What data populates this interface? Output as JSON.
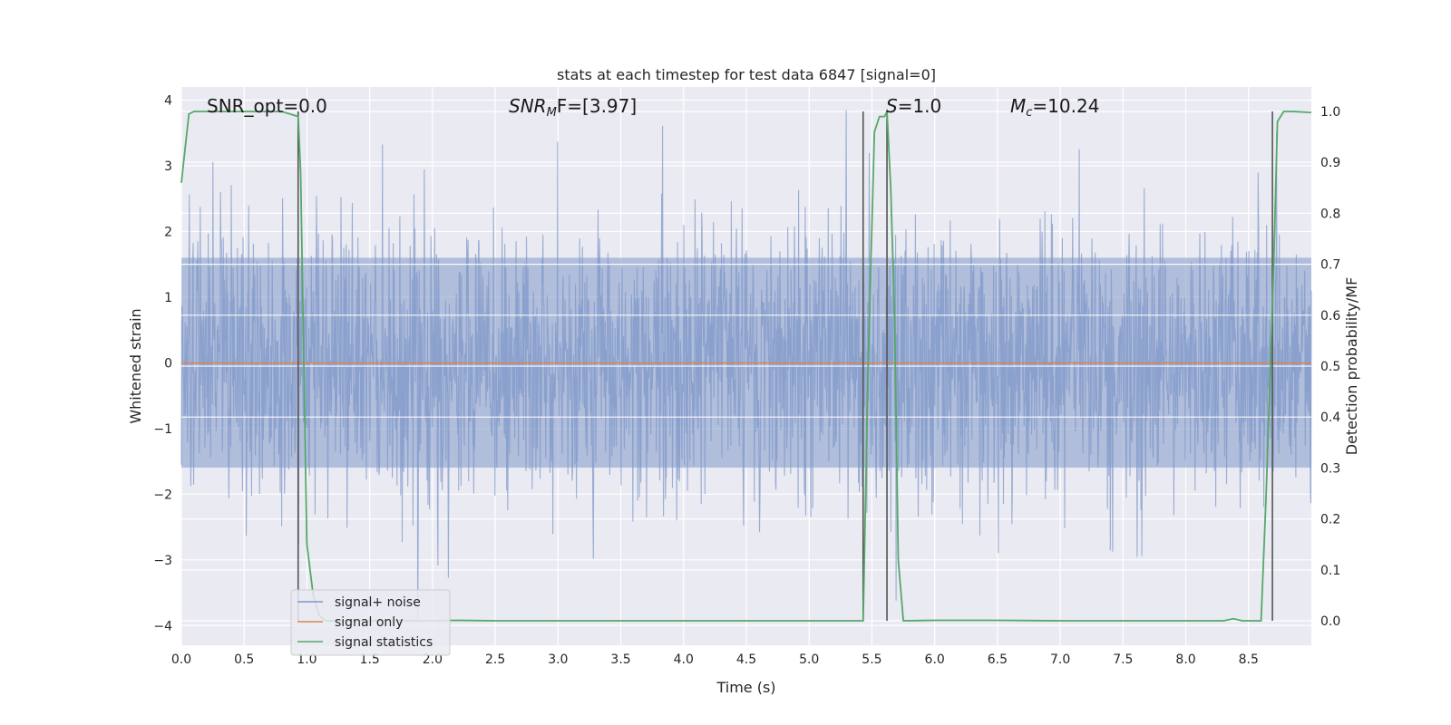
{
  "chart_data": {
    "type": "line",
    "title": "stats at each timestep for test data 6847 [signal=0]",
    "xlabel": "Time (s)",
    "ylabel": "Whitened strain",
    "y2label": "Detection probability/MF",
    "xlim": [
      0,
      9
    ],
    "ylim": [
      -4.3,
      4.2
    ],
    "y2lim": [
      -0.048,
      1.048
    ],
    "xticks": [
      "0.0",
      "0.5",
      "1.0",
      "1.5",
      "2.0",
      "2.5",
      "3.0",
      "3.5",
      "4.0",
      "4.5",
      "5.0",
      "5.5",
      "6.0",
      "6.5",
      "7.0",
      "7.5",
      "8.0",
      "8.5"
    ],
    "yticks": [
      "4",
      "3",
      "2",
      "1",
      "0",
      "−1",
      "−2",
      "−3",
      "−4"
    ],
    "y2ticks": [
      "1.0",
      "0.9",
      "0.8",
      "0.7",
      "0.6",
      "0.5",
      "0.4",
      "0.3",
      "0.2",
      "0.1",
      "0.0"
    ],
    "grid": true,
    "legend_position": "lower-left",
    "annotations": {
      "snr_opt": "SNR_opt=0.0",
      "snr_mf_italic": "SNR",
      "snr_mf_sub": "M",
      "snr_mf_rest": "F=[3.97]",
      "s_italic": "S",
      "s_rest": "=1.0",
      "mc_italic": "M",
      "mc_sub": "c",
      "mc_rest": "=10.24"
    },
    "vlines_x": [
      0.93,
      5.43,
      5.62,
      8.69
    ],
    "series": [
      {
        "name": "signal+ noise",
        "color": "#7f98c8",
        "axis": "left",
        "style": "noise",
        "amplitude_core": 1.6,
        "peak_range": [
          -3.95,
          3.85
        ]
      },
      {
        "name": "signal only",
        "color": "#dd8452",
        "axis": "left",
        "x": [
          0,
          9
        ],
        "values": [
          0,
          0
        ]
      },
      {
        "name": "signal statistics",
        "color": "#55a868",
        "axis": "right",
        "x": [
          0,
          0.06,
          0.1,
          0.2,
          0.5,
          0.8,
          0.93,
          0.95,
          1.0,
          1.05,
          1.1,
          1.15,
          1.2,
          1.3,
          1.5,
          2.0,
          2.2,
          2.5,
          3.0,
          4.0,
          5.0,
          5.43,
          5.47,
          5.52,
          5.56,
          5.6,
          5.62,
          5.65,
          5.68,
          5.71,
          5.75,
          6.0,
          6.5,
          7.0,
          7.5,
          8.0,
          8.3,
          8.38,
          8.45,
          8.6,
          8.64,
          8.7,
          8.73,
          8.78,
          8.85,
          9.0
        ],
        "values": [
          0.86,
          0.995,
          1.0,
          1.0,
          1.0,
          1.0,
          0.99,
          0.88,
          0.15,
          0.05,
          0.01,
          0.0,
          0.0,
          0.0,
          0.0,
          0.0,
          0.001,
          0.0,
          0.0,
          0.0,
          0.0,
          0.0,
          0.5,
          0.96,
          0.99,
          0.99,
          1.0,
          0.85,
          0.6,
          0.12,
          0.0,
          0.001,
          0.001,
          0.0,
          0.0,
          0.0,
          0.0,
          0.004,
          0.0,
          0.0,
          0.25,
          0.7,
          0.98,
          1.0,
          1.0,
          0.998
        ]
      }
    ]
  }
}
